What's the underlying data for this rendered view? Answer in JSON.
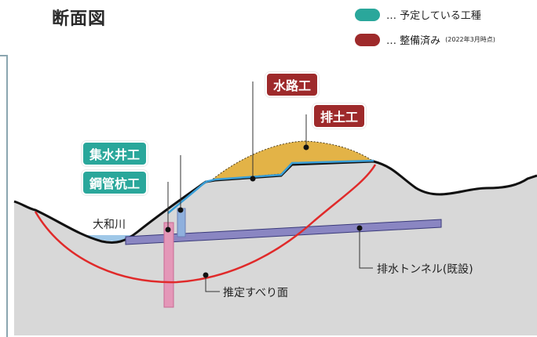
{
  "header": {
    "title": "断面図"
  },
  "legend": {
    "planned": {
      "label": "… 予定している工種",
      "color": "#2aa79b"
    },
    "completed": {
      "label": "… 整備済み",
      "note": "(2022年3月時点)",
      "color": "#9e2a2b"
    }
  },
  "labels": {
    "suirokou": "水路工",
    "haidokou": "排土工",
    "shusuiseikou": "集水井工",
    "koukankuikou": "鋼管杭工",
    "river": "大和川",
    "tunnel": "排水トンネル(既設)",
    "slip_surface": "推定すべり面"
  }
}
